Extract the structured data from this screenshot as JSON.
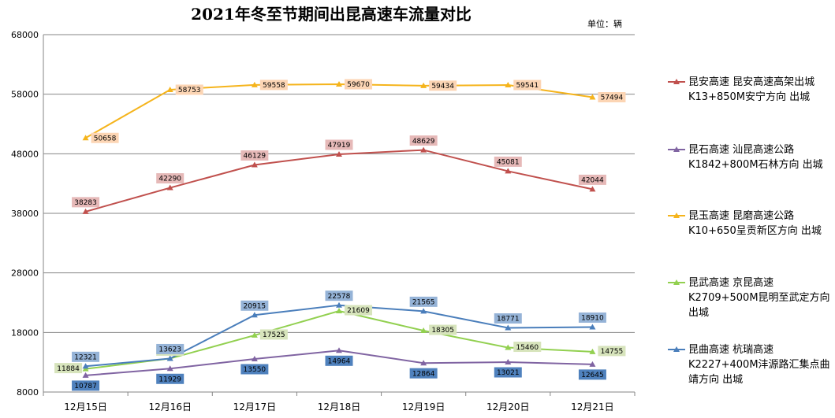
{
  "chart_data": {
    "type": "line",
    "title": "2021年冬至节期间出昆高速车流量对比",
    "unit": "单位：辆",
    "categories": [
      "12月15日",
      "12月16日",
      "12月17日",
      "12月18日",
      "12月19日",
      "12月20日",
      "12月21日"
    ],
    "ylim": [
      8000,
      68000
    ],
    "yticks": [
      "8000",
      "18000",
      "28000",
      "38000",
      "48000",
      "58000",
      "68000"
    ],
    "grid": true,
    "legend_position": "right",
    "series": [
      {
        "name": "昆安高速 昆安高速高架出城K13+850M安宁方向 出城",
        "color": "#c0504d",
        "label_bg": "#e6b9b8",
        "label_pos": "above",
        "values": [
          38283,
          42290,
          46129,
          47919,
          48629,
          45081,
          42044
        ]
      },
      {
        "name": "昆石高速 汕昆高速公路K1842+800M石林方向 出城",
        "color": "#8064a2",
        "label_bg": "#4f81bd",
        "label_pos": "below",
        "values": [
          10787,
          11929,
          13550,
          14964,
          12864,
          13021,
          12645
        ]
      },
      {
        "name": "昆玉高速 昆磨高速公路K10+650呈贡新区方向 出城",
        "color": "#f5b41c",
        "label_bg": "#fcd5b4",
        "label_pos": "right",
        "values": [
          50658,
          58753,
          59558,
          59670,
          59434,
          59541,
          57494
        ]
      },
      {
        "name": "昆武高速 京昆高速K2709+500M昆明至武定方向出城",
        "color": "#92d050",
        "label_bg": "#d7e4bc",
        "label_pos": "mixed",
        "values": [
          11884,
          13623,
          17525,
          21609,
          18305,
          15460,
          14755
        ]
      },
      {
        "name": "昆曲高速 杭瑞高速K2227+400M沣源路汇集点曲靖方向出城",
        "color": "#4a7ebb",
        "label_bg": "#95b3d7",
        "label_pos": "above",
        "values": [
          12321,
          13623,
          20915,
          22578,
          21565,
          18771,
          18910
        ]
      }
    ]
  },
  "legend": {
    "items": [
      {
        "lines": [
          "昆安高速 昆安高速高架出城",
          "K13+850M安宁方向 出城"
        ]
      },
      {
        "lines": [
          "昆石高速 汕昆高速公路",
          "K1842+800M石林方向 出城"
        ]
      },
      {
        "lines": [
          "昆玉高速 昆磨高速公路",
          "K10+650呈贡新区方向 出城"
        ]
      },
      {
        "lines": [
          "昆武高速 京昆高速",
          "K2709+500M昆明至武定方向",
          "出城"
        ]
      },
      {
        "lines": [
          "昆曲高速 杭瑞高速",
          "K2227+400M沣源路汇集点曲",
          "靖方向 出城"
        ]
      }
    ]
  }
}
